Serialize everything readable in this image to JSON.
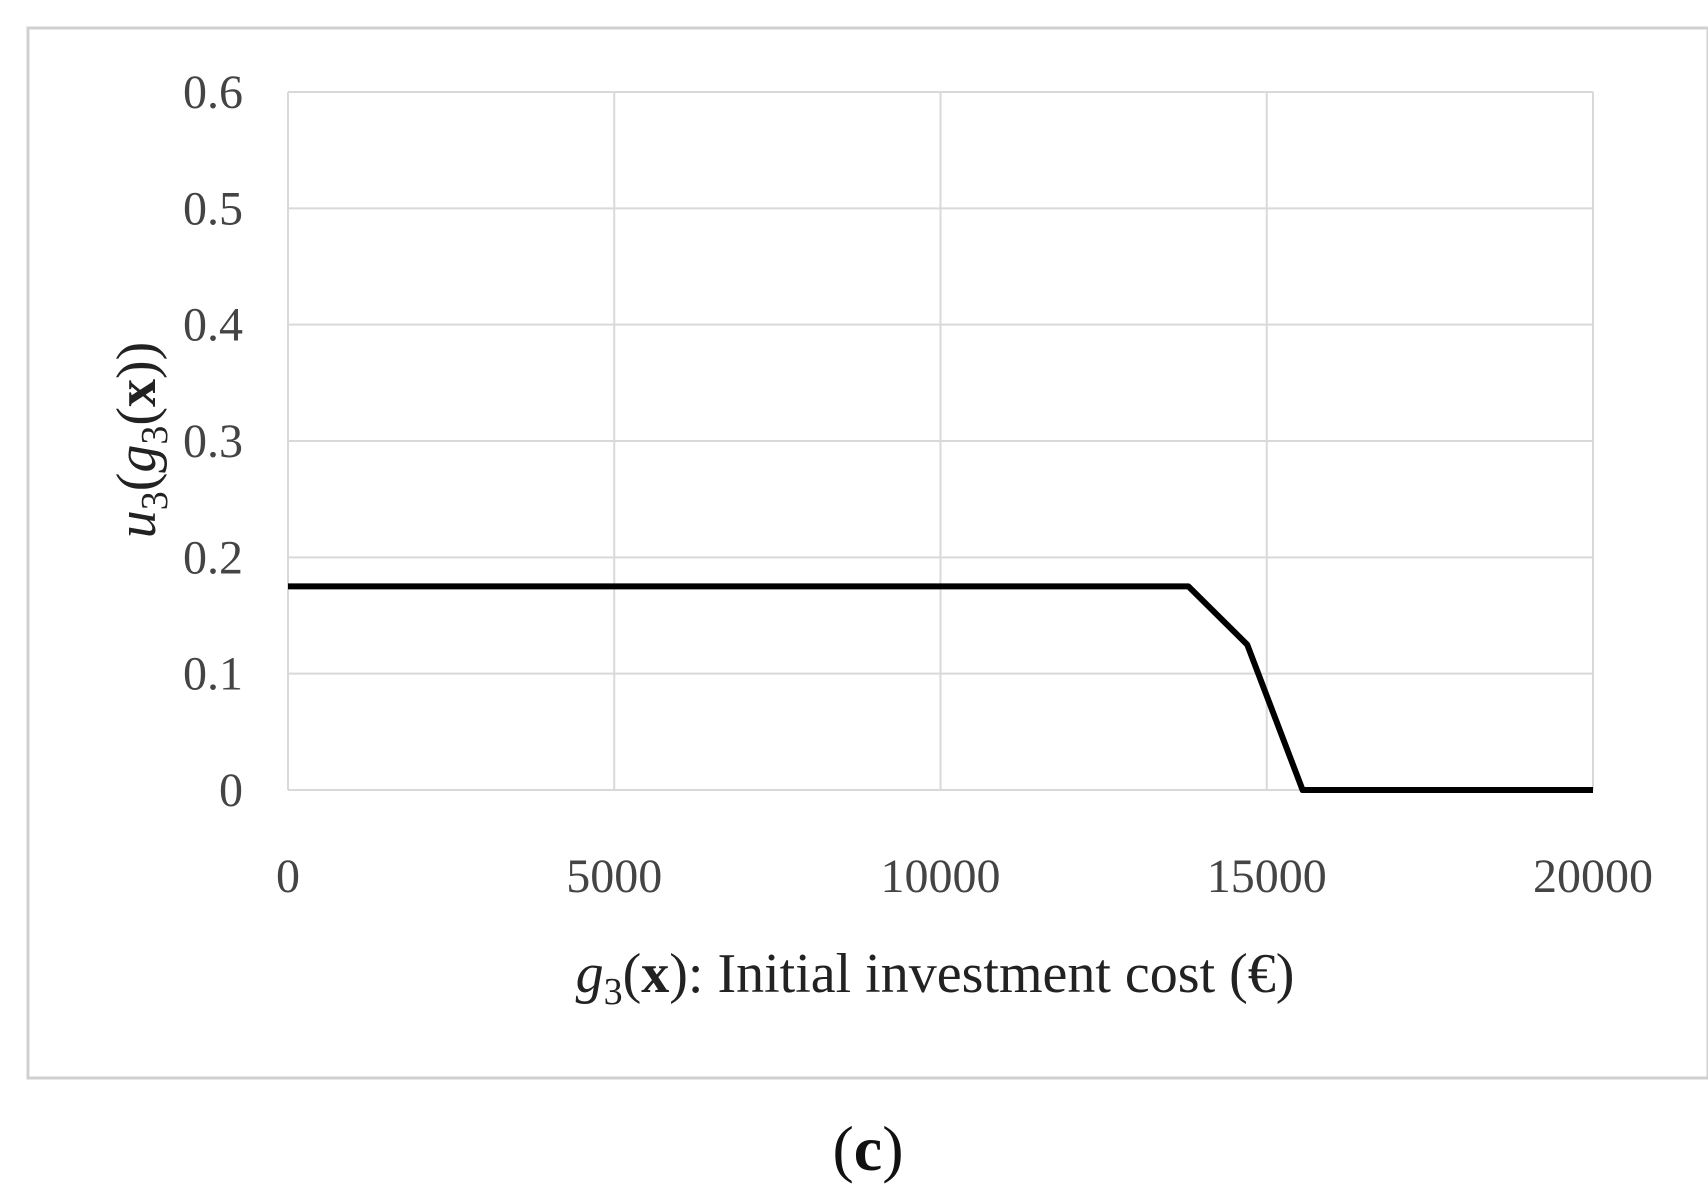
{
  "panel": {
    "label_open": "(",
    "label_letter": "c",
    "label_close": ")"
  },
  "chart_data": {
    "type": "line",
    "xlabel": {
      "italic": "g",
      "sub": "3",
      "rest_open": "(",
      "bold": "x",
      "rest_close": "): Initial investment cost (€)"
    },
    "ylabel": {
      "italic_u": "u",
      "sub_u": "3",
      "open1": "(",
      "italic_g": "g",
      "sub_g": "3",
      "open2": "(",
      "bold": "x",
      "close": "))"
    },
    "xlim": [
      0,
      20000
    ],
    "ylim": [
      0,
      0.6
    ],
    "x_ticks": [
      0,
      5000,
      10000,
      15000,
      20000
    ],
    "x_tick_labels": [
      "0",
      "5000",
      "10000",
      "15000",
      "20000"
    ],
    "y_ticks": [
      0,
      0.1,
      0.2,
      0.3,
      0.4,
      0.5,
      0.6
    ],
    "y_tick_labels": [
      "0",
      "0.1",
      "0.2",
      "0.3",
      "0.4",
      "0.5",
      "0.6"
    ],
    "grid": true,
    "line_color": "#000000",
    "grid_color": "#d9d9d9",
    "border_color": "#d0d0d0",
    "series": [
      {
        "x": [
          0,
          13800,
          14700,
          15550,
          20000
        ],
        "y": [
          0.175,
          0.175,
          0.125,
          0.0,
          0.0
        ]
      }
    ]
  }
}
